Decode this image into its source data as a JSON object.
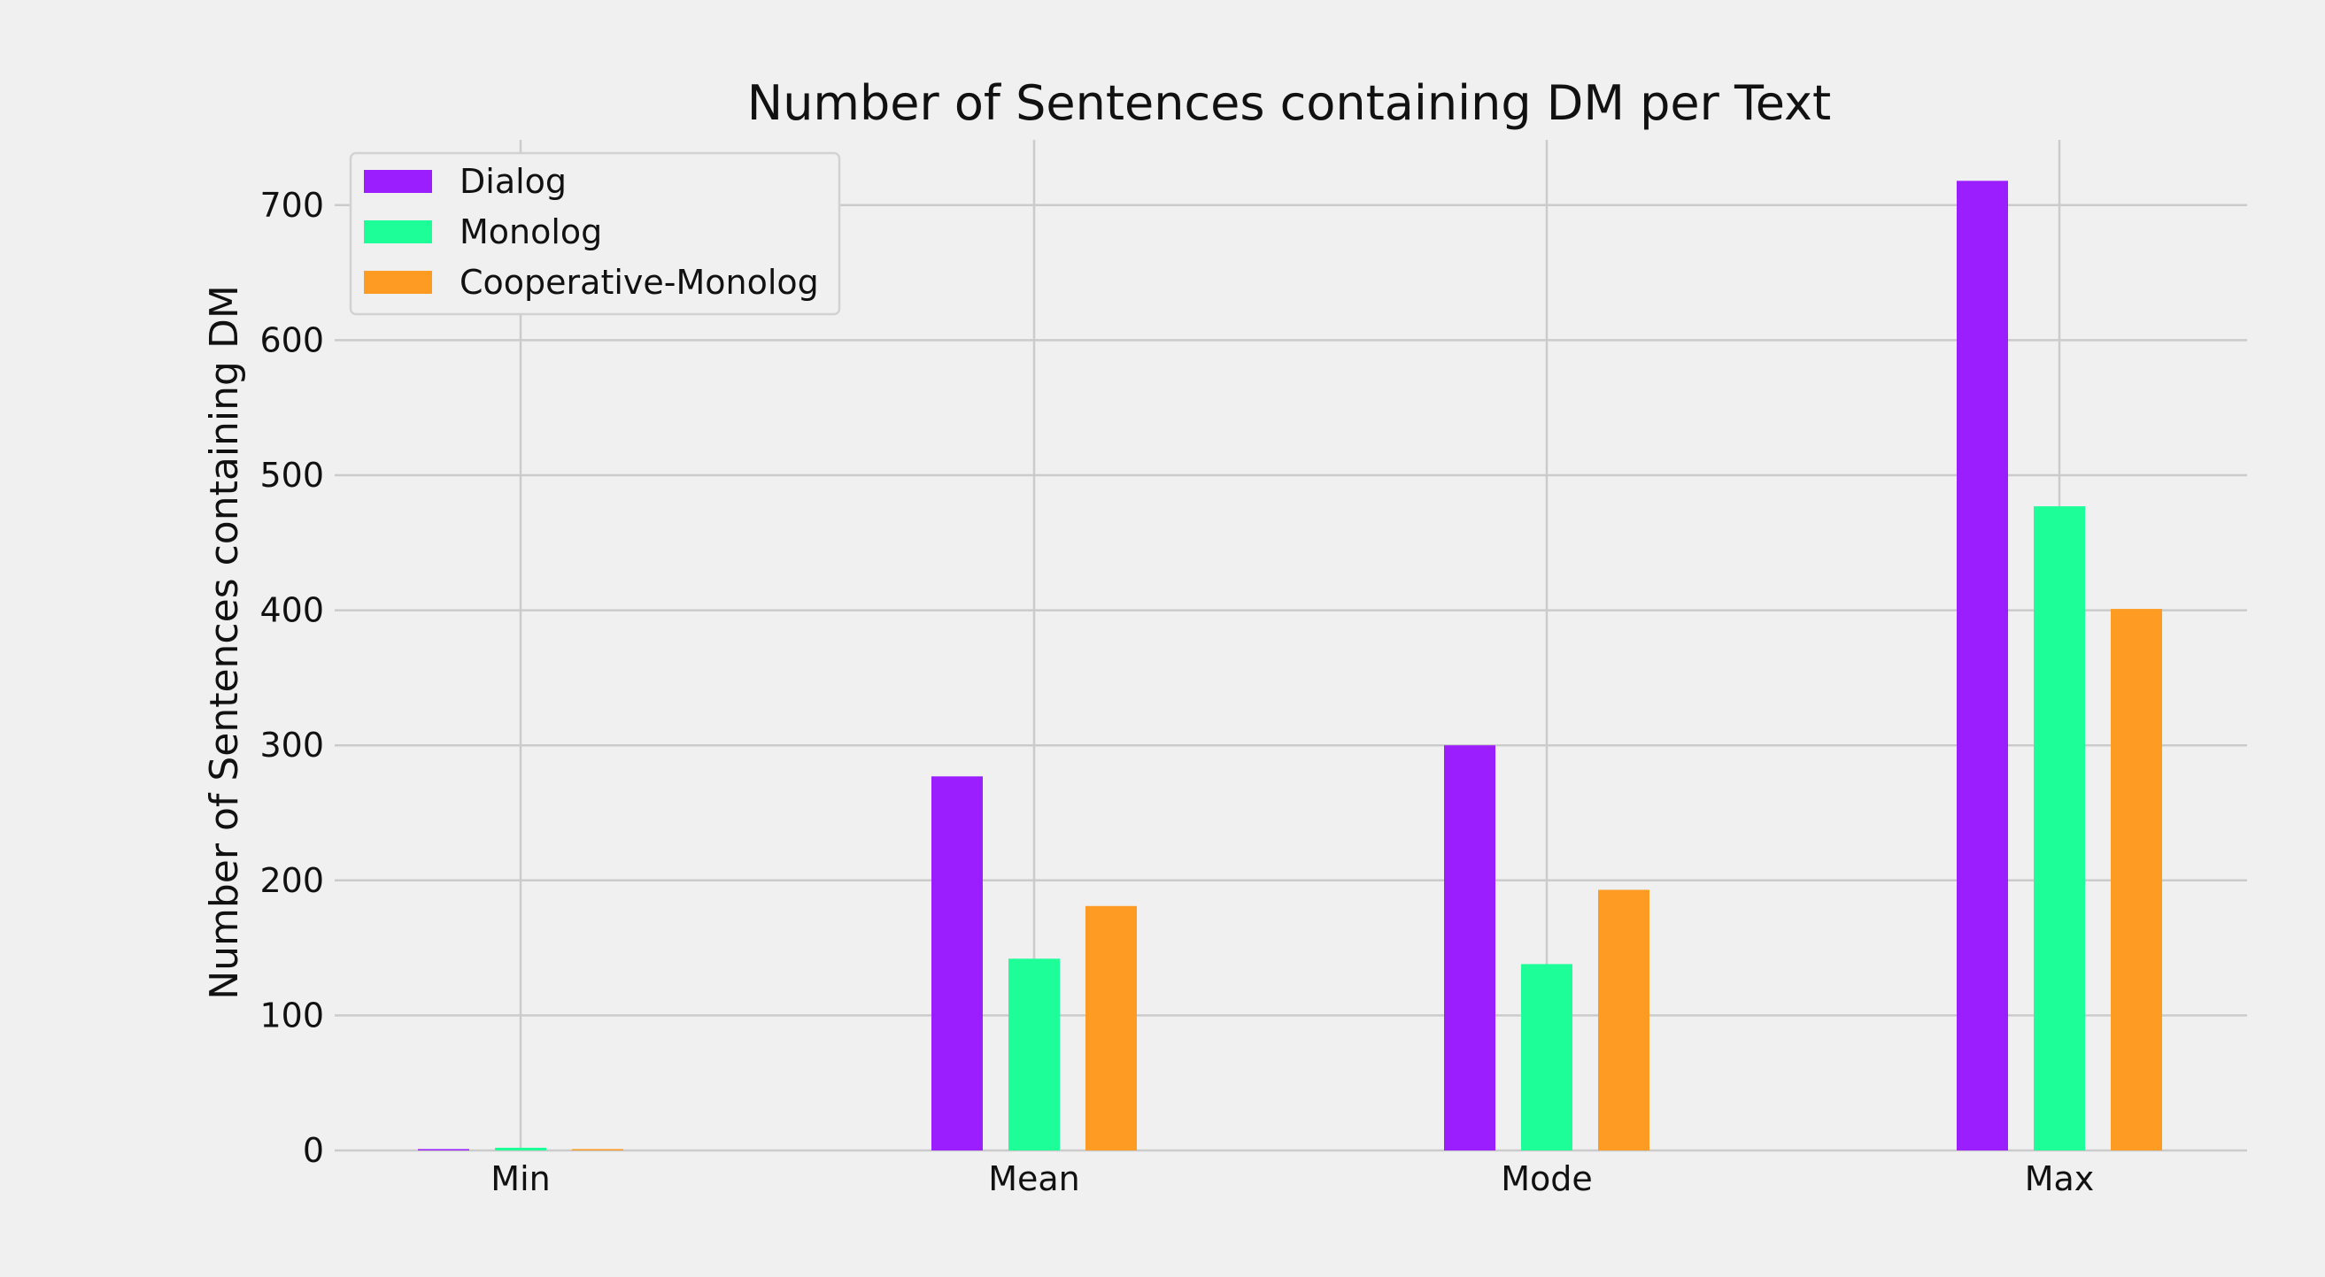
{
  "chart_data": {
    "type": "bar",
    "title": "Number of Sentences containing  DM per Text",
    "xlabel": "",
    "ylabel": "Number of Sentences containing DM",
    "categories": [
      "Min",
      "Mean",
      "Mode",
      "Max"
    ],
    "series": [
      {
        "name": "Dialog",
        "color": "#9b1ffe",
        "values": [
          1,
          277,
          300,
          718
        ]
      },
      {
        "name": "Monolog",
        "color": "#1dfe99",
        "values": [
          2,
          142,
          138,
          477
        ]
      },
      {
        "name": "Cooperative-Monolog",
        "color": "#fe9b22",
        "values": [
          1,
          181,
          193,
          401
        ]
      }
    ],
    "yticks": [
      0,
      100,
      200,
      300,
      400,
      500,
      600,
      700
    ],
    "ylim": [
      0,
      750
    ],
    "grid": true,
    "legend": "top-left",
    "background": "#f0f0f0"
  }
}
